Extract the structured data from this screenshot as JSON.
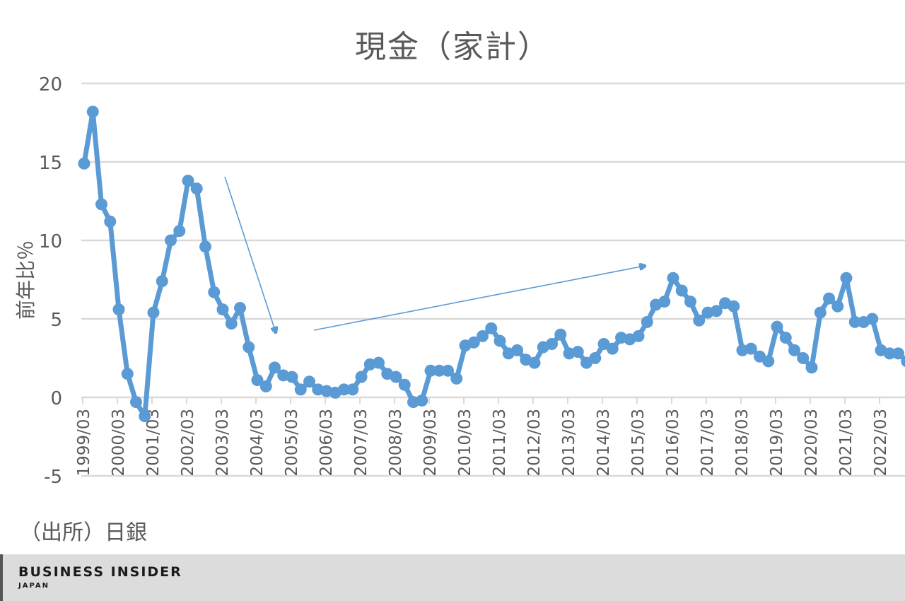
{
  "title": "現金（家計）",
  "source": "（出所）日銀",
  "footer": {
    "brand": "BUSINESS INSIDER",
    "brand_sub": "JAPAN"
  },
  "colors": {
    "series": "#5b9bd5",
    "grid": "#d9d9d9",
    "text": "#595959",
    "arrow": "#5b9bd5",
    "footer_bg": "#dcdcdc"
  },
  "chart_data": {
    "type": "line",
    "title": "現金（家計）",
    "xlabel": "",
    "ylabel": "前年比％",
    "ylim": [
      -5,
      20
    ],
    "yticks": [
      -5,
      0,
      5,
      10,
      15,
      20
    ],
    "grid": true,
    "legend": "none",
    "x_tick_labels": [
      "1999/03",
      "2000/03",
      "2001/03",
      "2002/03",
      "2003/03",
      "2004/03",
      "2005/03",
      "2006/03",
      "2007/03",
      "2008/03",
      "2009/03",
      "2010/03",
      "2011/03",
      "2012/03",
      "2013/03",
      "2014/03",
      "2015/03",
      "2016/03",
      "2017/03",
      "2018/03",
      "2019/03",
      "2020/03",
      "2021/03",
      "2022/03"
    ],
    "x_frequency": "quarterly",
    "series": [
      {
        "name": "現金（家計）前年比",
        "values": [
          14.9,
          18.2,
          12.3,
          11.2,
          5.6,
          1.5,
          -0.3,
          -1.2,
          5.4,
          7.4,
          10.0,
          10.6,
          13.8,
          13.3,
          9.6,
          6.7,
          5.6,
          4.7,
          5.7,
          3.2,
          1.1,
          0.7,
          1.9,
          1.4,
          1.3,
          0.5,
          1.0,
          0.5,
          0.4,
          0.3,
          0.5,
          0.5,
          1.3,
          2.1,
          2.2,
          1.5,
          1.3,
          0.8,
          -0.3,
          -0.2,
          1.7,
          1.7,
          1.7,
          1.2,
          3.3,
          3.5,
          3.9,
          4.4,
          3.6,
          2.8,
          3.0,
          2.4,
          2.2,
          3.2,
          3.4,
          4.0,
          2.8,
          2.9,
          2.2,
          2.5,
          3.4,
          3.1,
          3.8,
          3.7,
          3.9,
          4.8,
          5.9,
          6.1,
          7.6,
          6.8,
          6.1,
          4.9,
          5.4,
          5.5,
          6.0,
          5.8,
          3.0,
          3.1,
          2.6,
          2.3,
          4.5,
          3.8,
          3.0,
          2.5,
          1.9,
          5.4,
          6.3,
          5.8,
          7.6,
          4.8,
          4.8,
          5.0,
          3.0,
          2.8,
          2.8,
          2.3
        ]
      }
    ],
    "annotations": [
      {
        "type": "arrow",
        "description": "downward trend arrow",
        "from": [
          318,
          250
        ],
        "to": [
          390,
          470
        ]
      },
      {
        "type": "arrow",
        "description": "upward trend arrow",
        "from": [
          444,
          467
        ],
        "to": [
          912,
          376
        ]
      }
    ]
  }
}
